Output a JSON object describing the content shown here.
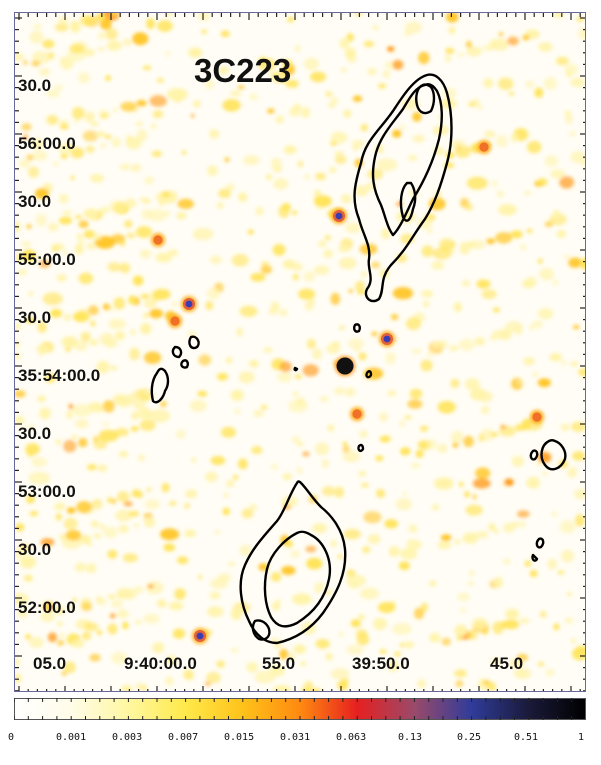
{
  "title": "3C223",
  "dec_labels": [
    "30.0",
    "56:00.0",
    "30.0",
    "55:00.0",
    "30.0",
    "35:54:00.0",
    "30.0",
    "53:00.0",
    "30.0",
    "52:00.0"
  ],
  "ra_labels": [
    "05.0",
    "9:40:00.0",
    "55.0",
    "39:50.0",
    "45.0"
  ],
  "colorbar": {
    "ticks": [
      "0",
      "0.001",
      "0.003",
      "0.007",
      "0.015",
      "0.031",
      "0.063",
      "0.13",
      "0.25",
      "0.51",
      "1"
    ],
    "colors": [
      "#ffffff",
      "#fffce8",
      "#fff7a0",
      "#ffe94a",
      "#ffc21a",
      "#ff8a10",
      "#e62020",
      "#9a4a6a",
      "#303c9a",
      "#1a1a3a",
      "#000000"
    ]
  }
}
